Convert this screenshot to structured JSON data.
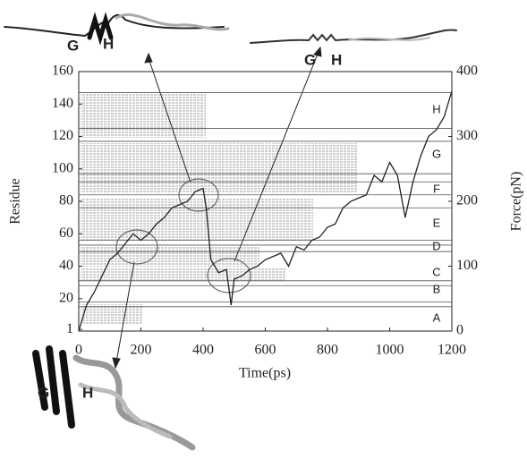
{
  "chart_data": {
    "type": "line",
    "xlabel": "Time(ps)",
    "ylabel": "Residue",
    "y2label": "Force(pN)",
    "xlim": [
      0,
      1200
    ],
    "xticks": [
      0,
      200,
      400,
      600,
      800,
      1000,
      1200
    ],
    "ylim": [
      0,
      160
    ],
    "yticks": [
      1,
      20,
      40,
      60,
      80,
      100,
      120,
      140,
      160
    ],
    "y2lim": [
      0,
      400
    ],
    "y2ticks": [
      0,
      100,
      200,
      300,
      400
    ],
    "boundaries": [
      147,
      125,
      117,
      97,
      92,
      84,
      76,
      56,
      53,
      49,
      31,
      28,
      18,
      15
    ],
    "regions": [
      "H",
      "G",
      "F",
      "E",
      "D",
      "C",
      "B",
      "A"
    ],
    "annotations": [
      "G",
      "H",
      "G",
      "H",
      "G",
      "H"
    ],
    "x": [
      0,
      25,
      50,
      75,
      100,
      125,
      150,
      175,
      200,
      225,
      250,
      275,
      300,
      325,
      350,
      375,
      400,
      410,
      425,
      450,
      475,
      490,
      500,
      525,
      550,
      575,
      600,
      625,
      650,
      675,
      700,
      725,
      750,
      775,
      800,
      825,
      850,
      875,
      900,
      925,
      950,
      975,
      1000,
      1025,
      1050,
      1075,
      1100,
      1125,
      1150,
      1175,
      1200
    ],
    "series": [
      {
        "axis": "y2",
        "color": "#222222",
        "values": [
          0,
          40,
          60,
          85,
          110,
          120,
          135,
          150,
          140,
          150,
          165,
          175,
          190,
          195,
          200,
          215,
          220,
          190,
          110,
          90,
          95,
          40,
          80,
          85,
          95,
          100,
          110,
          115,
          120,
          100,
          130,
          125,
          140,
          145,
          160,
          165,
          190,
          200,
          205,
          210,
          240,
          230,
          260,
          240,
          175,
          230,
          270,
          300,
          310,
          330,
          370
        ]
      }
    ]
  }
}
